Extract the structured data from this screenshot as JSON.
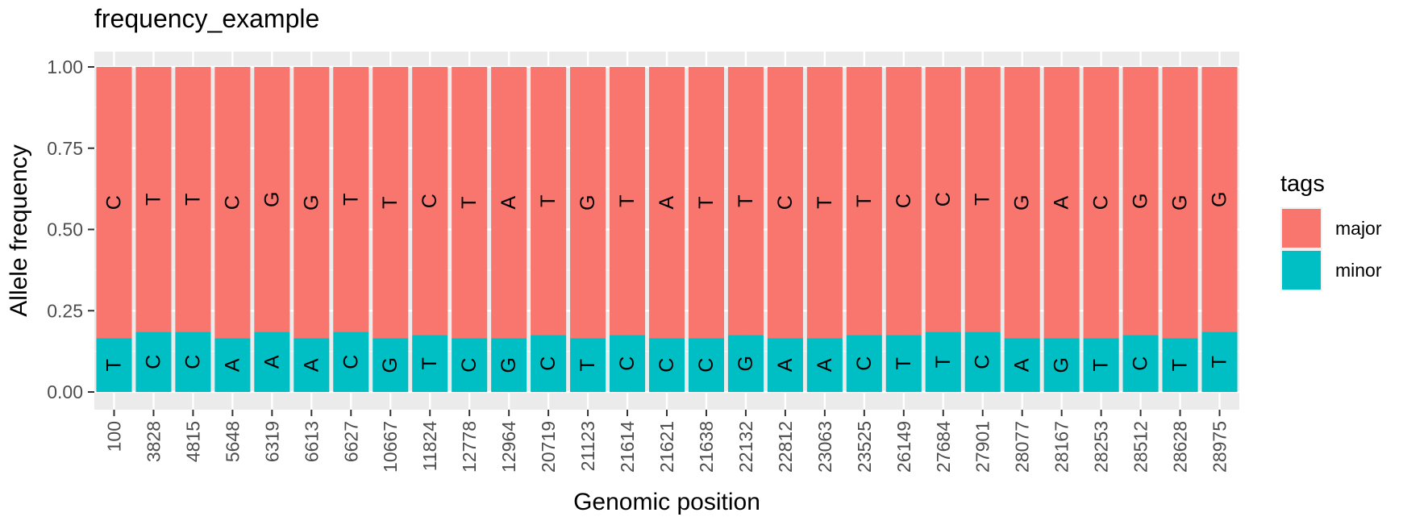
{
  "chart_data": {
    "type": "bar",
    "stacked": true,
    "title": "frequency_example",
    "xlabel": "Genomic position",
    "ylabel": "Allele frequency",
    "ylim": [
      0,
      1
    ],
    "yticks": [
      "0.00",
      "0.25",
      "0.50",
      "0.75",
      "1.00"
    ],
    "grid": true,
    "legend": {
      "title": "tags",
      "position": "right"
    },
    "categories": [
      "100",
      "3828",
      "4815",
      "5648",
      "6319",
      "6613",
      "6627",
      "10667",
      "11824",
      "12778",
      "12964",
      "20719",
      "21123",
      "21614",
      "21621",
      "21638",
      "22132",
      "22812",
      "23063",
      "23525",
      "26149",
      "27684",
      "27901",
      "28077",
      "28167",
      "28253",
      "28512",
      "28628",
      "28975"
    ],
    "series": [
      {
        "name": "minor",
        "color": "#00BFC4",
        "values": [
          0.165,
          0.185,
          0.185,
          0.165,
          0.185,
          0.165,
          0.185,
          0.165,
          0.175,
          0.165,
          0.165,
          0.175,
          0.165,
          0.175,
          0.165,
          0.165,
          0.175,
          0.165,
          0.165,
          0.175,
          0.175,
          0.185,
          0.185,
          0.165,
          0.165,
          0.165,
          0.175,
          0.165,
          0.185
        ],
        "labels": [
          "T",
          "C",
          "C",
          "A",
          "A",
          "A",
          "C",
          "G",
          "T",
          "C",
          "G",
          "C",
          "T",
          "C",
          "C",
          "C",
          "G",
          "A",
          "A",
          "C",
          "T",
          "T",
          "C",
          "A",
          "G",
          "T",
          "C",
          "T",
          "T"
        ]
      },
      {
        "name": "major",
        "color": "#F8766D",
        "values": [
          0.835,
          0.815,
          0.815,
          0.835,
          0.815,
          0.835,
          0.815,
          0.835,
          0.825,
          0.835,
          0.835,
          0.825,
          0.835,
          0.825,
          0.835,
          0.835,
          0.825,
          0.835,
          0.835,
          0.825,
          0.825,
          0.815,
          0.815,
          0.835,
          0.835,
          0.835,
          0.825,
          0.835,
          0.815
        ],
        "labels": [
          "C",
          "T",
          "T",
          "C",
          "G",
          "G",
          "T",
          "T",
          "C",
          "T",
          "A",
          "T",
          "G",
          "T",
          "A",
          "T",
          "T",
          "C",
          "T",
          "T",
          "C",
          "C",
          "T",
          "G",
          "A",
          "C",
          "G",
          "G",
          "G"
        ]
      }
    ]
  }
}
